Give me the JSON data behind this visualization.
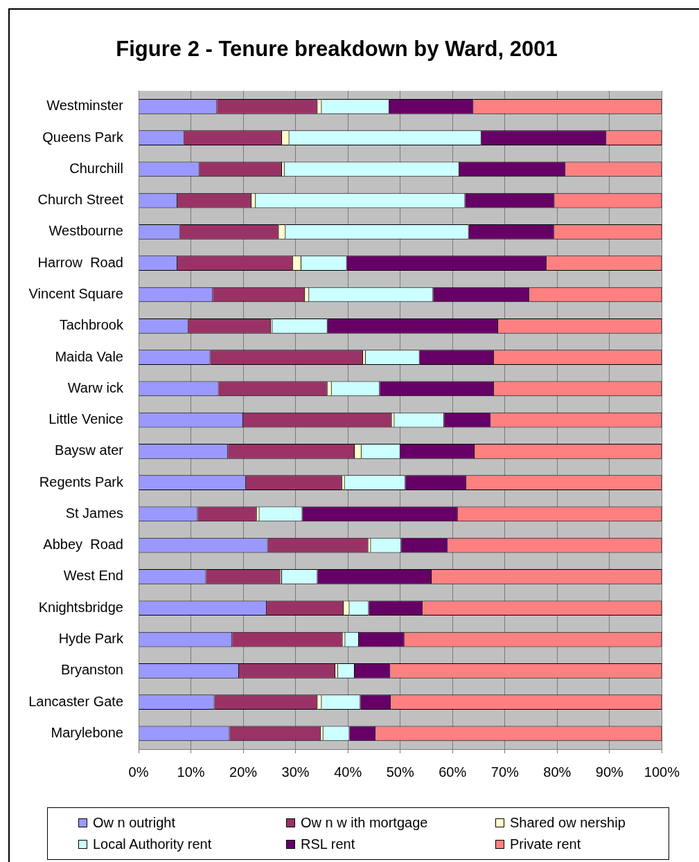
{
  "chart_data": {
    "type": "bar",
    "title": "Figure 2 - Tenure breakdown by Ward, 2001",
    "orientation": "horizontal",
    "stacked": true,
    "categories": [
      "Westminster",
      "Queens Park",
      "Churchill",
      "Church Street",
      "Westbourne",
      "Harrow  Road",
      "Vincent Square",
      "Tachbrook",
      "Maida Vale",
      "Warw ick",
      "Little Venice",
      "Baysw ater",
      "Regents Park",
      "St James",
      "Abbey  Road",
      "West End",
      "Knightsbridge",
      "Hyde Park",
      "Bryanston",
      "Lancaster Gate",
      "Marylebone"
    ],
    "series": [
      {
        "name": "Ow n outright",
        "color": "#9999ff",
        "values": [
          15.0,
          8.7,
          11.6,
          7.4,
          7.9,
          7.4,
          14.2,
          9.5,
          13.7,
          15.3,
          20.0,
          17.1,
          20.5,
          11.3,
          24.7,
          12.9,
          24.5,
          17.9,
          19.2,
          14.5,
          17.4
        ]
      },
      {
        "name": "Ow n w ith mortgage",
        "color": "#993366",
        "values": [
          19.2,
          18.7,
          15.8,
          14.2,
          18.9,
          22.1,
          17.6,
          15.8,
          29.2,
          20.8,
          28.4,
          24.2,
          18.4,
          11.3,
          19.2,
          14.2,
          14.7,
          21.1,
          18.4,
          19.7,
          17.4
        ]
      },
      {
        "name": "Shared ow nership",
        "color": "#ffffcc",
        "values": [
          0.8,
          1.4,
          0.5,
          0.8,
          1.3,
          1.6,
          0.8,
          0.3,
          0.5,
          0.8,
          0.5,
          1.3,
          0.5,
          0.5,
          0.5,
          0.3,
          1.1,
          0.5,
          0.5,
          0.8,
          0.5
        ]
      },
      {
        "name": "Local Authority rent",
        "color": "#ccffff",
        "values": [
          12.9,
          36.7,
          33.4,
          40.0,
          35.0,
          8.7,
          23.7,
          10.5,
          10.3,
          9.2,
          9.5,
          7.4,
          11.6,
          8.2,
          5.8,
          6.8,
          3.7,
          2.6,
          3.2,
          7.4,
          5.0
        ]
      },
      {
        "name": "RSL rent",
        "color": "#660066",
        "values": [
          16.1,
          23.9,
          20.3,
          17.1,
          16.3,
          38.2,
          18.4,
          32.6,
          14.2,
          21.8,
          8.9,
          14.2,
          11.6,
          29.7,
          8.9,
          21.8,
          10.3,
          8.7,
          6.8,
          5.8,
          5.0
        ]
      },
      {
        "name": "Private rent",
        "color": "#ff8080",
        "values": [
          36.0,
          10.6,
          18.4,
          20.5,
          20.6,
          22.0,
          25.3,
          31.3,
          32.1,
          32.1,
          32.7,
          35.8,
          37.4,
          39.0,
          40.9,
          44.0,
          45.7,
          49.2,
          51.9,
          51.8,
          54.7
        ]
      }
    ],
    "xlim": [
      0,
      100
    ],
    "xticks": [
      {
        "value": 0,
        "label": "0%"
      },
      {
        "value": 10,
        "label": "10%"
      },
      {
        "value": 20,
        "label": "20%"
      },
      {
        "value": 30,
        "label": "30%"
      },
      {
        "value": 40,
        "label": "40%"
      },
      {
        "value": 50,
        "label": "50%"
      },
      {
        "value": 60,
        "label": "60%"
      },
      {
        "value": 70,
        "label": "70%"
      },
      {
        "value": 80,
        "label": "80%"
      },
      {
        "value": 90,
        "label": "90%"
      },
      {
        "value": 100,
        "label": "100%"
      }
    ],
    "grid": "x",
    "legend": "bottom"
  }
}
